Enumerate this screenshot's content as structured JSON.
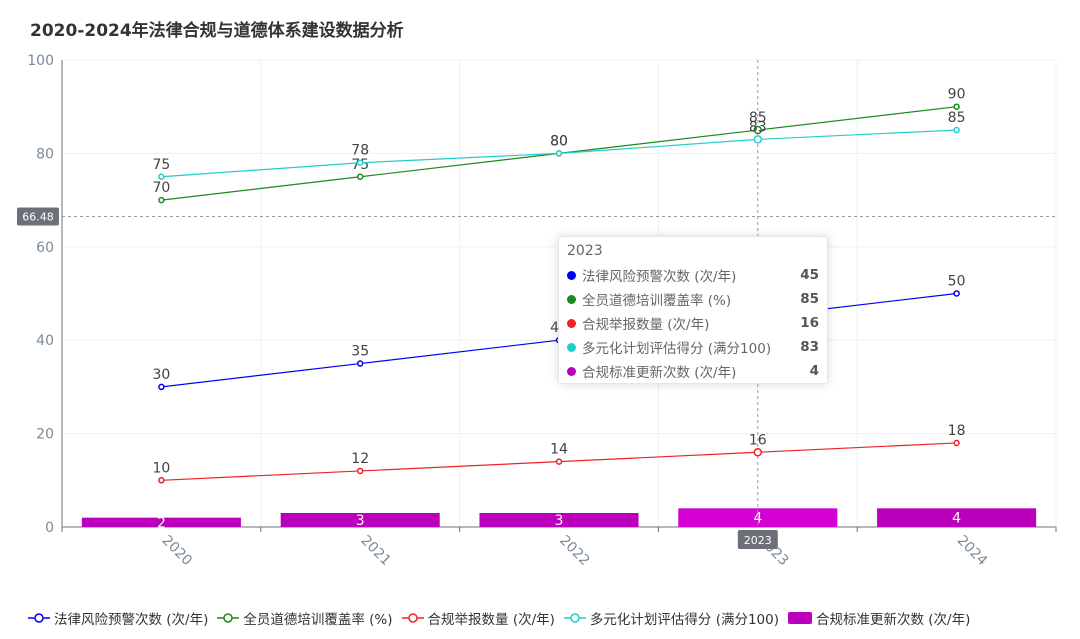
{
  "chart_data": {
    "type": "line",
    "title": "2020-2024年法律合规与道德体系建设数据分析",
    "categories": [
      "2020",
      "2021",
      "2022",
      "2023",
      "2024"
    ],
    "ylim": [
      0,
      100
    ],
    "yticks": [
      0,
      20,
      40,
      60,
      80,
      100
    ],
    "grid": true,
    "legend_position": "bottom",
    "series": [
      {
        "name": "法律风险预警次数 (次/年)",
        "type": "line",
        "color": "#0000ee",
        "values": [
          30,
          35,
          40,
          45,
          50
        ]
      },
      {
        "name": "全员道德培训覆盖率 (%)",
        "type": "line",
        "color": "#1a8a1a",
        "values": [
          70,
          75,
          80,
          85,
          90
        ]
      },
      {
        "name": "合规举报数量 (次/年)",
        "type": "line",
        "color": "#ee2222",
        "values": [
          10,
          12,
          14,
          16,
          18
        ]
      },
      {
        "name": "多元化计划评估得分 (满分100)",
        "type": "line",
        "color": "#22cccc",
        "values": [
          75,
          78,
          80,
          83,
          85
        ]
      },
      {
        "name": "合规标准更新次数 (次/年)",
        "type": "bar",
        "color": "#bb00bb",
        "values": [
          2,
          3,
          3,
          4,
          4
        ]
      }
    ],
    "crosshair": {
      "y_value": "66.48",
      "x_category": "2023"
    },
    "tooltip": {
      "title": "2023",
      "rows": [
        {
          "name": "法律风险预警次数 (次/年)",
          "value": "45",
          "color": "#0000ee"
        },
        {
          "name": "全员道德培训覆盖率 (%)",
          "value": "85",
          "color": "#1a8a1a"
        },
        {
          "name": "合规举报数量 (次/年)",
          "value": "16",
          "color": "#ee2222"
        },
        {
          "name": "多元化计划评估得分 (满分100)",
          "value": "83",
          "color": "#22cccc"
        },
        {
          "name": "合规标准更新次数 (次/年)",
          "value": "4",
          "color": "#bb00bb"
        }
      ]
    }
  }
}
